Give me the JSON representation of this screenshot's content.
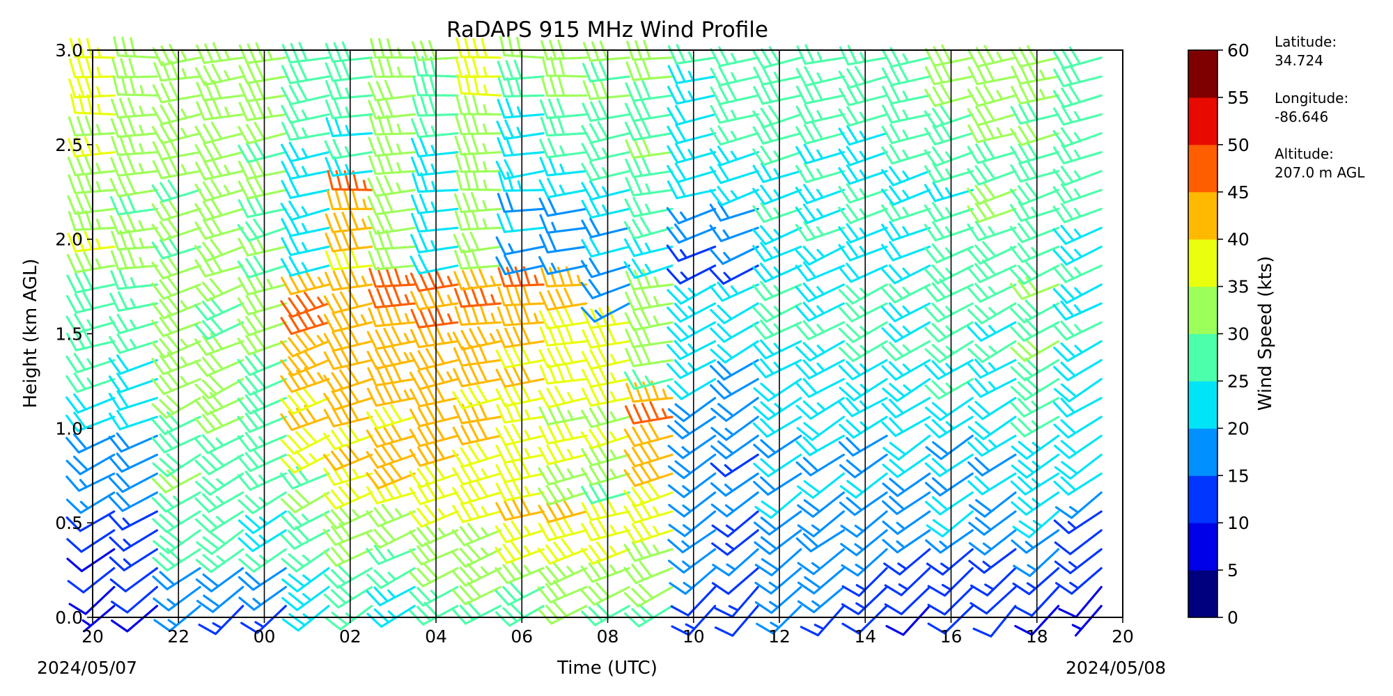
{
  "chart_data": {
    "type": "wind_barb_time_height",
    "title": "RaDAPS 915 MHz Wind Profile",
    "xlabel": "Time (UTC)",
    "ylabel": "Height (km AGL)",
    "x_tick_labels": [
      "20",
      "22",
      "00",
      "02",
      "04",
      "06",
      "08",
      "10",
      "12",
      "14",
      "16",
      "18",
      "20"
    ],
    "x_start_date": "2024/05/07",
    "x_end_date": "2024/05/08",
    "xlim_hours": [
      0,
      24
    ],
    "ylim": [
      0.0,
      3.0
    ],
    "y_ticks": [
      "0.0",
      "0.5",
      "1.0",
      "1.5",
      "2.0",
      "2.5",
      "3.0"
    ],
    "grid": "vertical lines every 2 hours",
    "colorbar": {
      "label": "Wind Speed (kts)",
      "ticks": [
        "0",
        "5",
        "10",
        "15",
        "20",
        "25",
        "30",
        "35",
        "40",
        "45",
        "50",
        "55",
        "60"
      ],
      "range": [
        0,
        60
      ],
      "colors": [
        "#00007f",
        "#0000e8",
        "#0036ff",
        "#0090ff",
        "#00e4f7",
        "#4cffaa",
        "#9dff59",
        "#e9ff0d",
        "#ffb900",
        "#ff5e00",
        "#e80a00",
        "#7f0000"
      ]
    },
    "station": {
      "latitude_label": "Latitude:",
      "latitude": "34.724",
      "longitude_label": "Longitude:",
      "longitude": "-86.646",
      "altitude_label": "Altitude:",
      "altitude": "207.0 m AGL"
    },
    "profiles": [
      {
        "t": 0.5,
        "layers": [
          {
            "top": 0.6,
            "spd": [
              8,
              12
            ],
            "dir": [
              225,
              240
            ]
          },
          {
            "top": 1.3,
            "spd": [
              14,
              24
            ],
            "dir": [
              240,
              250
            ]
          },
          {
            "top": 1.85,
            "spd": [
              24,
              31
            ],
            "dir": [
              250,
              262
            ]
          },
          {
            "top": 3.0,
            "spd": [
              33,
              37
            ],
            "dir": [
              262,
              272
            ]
          }
        ]
      },
      {
        "t": 1.5,
        "layers": [
          {
            "top": 0.6,
            "spd": [
              9,
              13
            ],
            "dir": [
              228,
              242
            ]
          },
          {
            "top": 1.3,
            "spd": [
              15,
              24
            ],
            "dir": [
              242,
              252
            ]
          },
          {
            "top": 1.85,
            "spd": [
              22,
              28
            ],
            "dir": [
              252,
              262
            ]
          },
          {
            "top": 3.0,
            "spd": [
              31,
              34
            ],
            "dir": [
              262,
              270
            ]
          }
        ]
      },
      {
        "t": 2.5,
        "layers": [
          {
            "top": 0.3,
            "spd": [
              14,
              20
            ],
            "dir": [
              225,
              235
            ]
          },
          {
            "top": 1.8,
            "spd": [
              28,
              33
            ],
            "dir": [
              235,
              250
            ]
          },
          {
            "top": 3.0,
            "spd": [
              30,
              33
            ],
            "dir": [
              250,
              262
            ]
          }
        ]
      },
      {
        "t": 3.5,
        "layers": [
          {
            "top": 0.3,
            "spd": [
              14,
              20
            ],
            "dir": [
              225,
              235
            ]
          },
          {
            "top": 1.8,
            "spd": [
              26,
              32
            ],
            "dir": [
              235,
              250
            ]
          },
          {
            "top": 3.0,
            "spd": [
              31,
              34
            ],
            "dir": [
              250,
              262
            ]
          }
        ]
      },
      {
        "t": 4.5,
        "layers": [
          {
            "top": 0.3,
            "spd": [
              14,
              20
            ],
            "dir": [
              228,
              238
            ]
          },
          {
            "top": 1.8,
            "spd": [
              24,
              32
            ],
            "dir": [
              238,
              252
            ]
          },
          {
            "top": 3.0,
            "spd": [
              28,
              32
            ],
            "dir": [
              252,
              262
            ]
          }
        ]
      },
      {
        "t": 5.5,
        "layers": [
          {
            "top": 0.8,
            "spd": [
              22,
              30
            ],
            "dir": [
              232,
              245
            ]
          },
          {
            "top": 1.85,
            "spd": [
              38,
              46
            ],
            "dir": [
              245,
              255
            ]
          },
          {
            "top": 3.0,
            "spd": [
              22,
              28
            ],
            "dir": [
              255,
              262
            ]
          }
        ]
      },
      {
        "t": 6.5,
        "layers": [
          {
            "top": 0.6,
            "spd": [
              24,
              32
            ],
            "dir": [
              235,
              248
            ]
          },
          {
            "top": 1.85,
            "spd": [
              37,
              45
            ],
            "dir": [
              248,
              262
            ]
          },
          {
            "top": 2.3,
            "spd": [
              40,
              45
            ],
            "dir": [
              262,
              268
            ]
          },
          {
            "top": 3.0,
            "spd": [
              22,
              30
            ],
            "dir": [
              262,
              268
            ]
          }
        ]
      },
      {
        "t": 7.5,
        "layers": [
          {
            "top": 0.6,
            "spd": [
              24,
              32
            ],
            "dir": [
              238,
              250
            ]
          },
          {
            "top": 1.85,
            "spd": [
              38,
              47
            ],
            "dir": [
              250,
              265
            ]
          },
          {
            "top": 3.0,
            "spd": [
              30,
              34
            ],
            "dir": [
              262,
              268
            ]
          }
        ]
      },
      {
        "t": 8.5,
        "layers": [
          {
            "top": 0.6,
            "spd": [
              26,
              36
            ],
            "dir": [
              238,
              250
            ]
          },
          {
            "top": 1.85,
            "spd": [
              38,
              46
            ],
            "dir": [
              250,
              265
            ]
          },
          {
            "top": 3.0,
            "spd": [
              22,
              30
            ],
            "dir": [
              262,
              270
            ]
          }
        ]
      },
      {
        "t": 9.5,
        "layers": [
          {
            "top": 0.6,
            "spd": [
              28,
              36
            ],
            "dir": [
              240,
              252
            ]
          },
          {
            "top": 1.85,
            "spd": [
              37,
              45
            ],
            "dir": [
              252,
              266
            ]
          },
          {
            "top": 3.0,
            "spd": [
              30,
              38
            ],
            "dir": [
              265,
              272
            ]
          }
        ]
      },
      {
        "t": 10.5,
        "layers": [
          {
            "top": 0.6,
            "spd": [
              28,
              40
            ],
            "dir": [
              240,
              255
            ]
          },
          {
            "top": 1.8,
            "spd": [
              35,
              44
            ],
            "dir": [
              255,
              266
            ]
          },
          {
            "top": 2.3,
            "spd": [
              15,
              22
            ],
            "dir": [
              260,
              268
            ]
          },
          {
            "top": 3.0,
            "spd": [
              20,
              30
            ],
            "dir": [
              262,
              270
            ]
          }
        ]
      },
      {
        "t": 11.5,
        "layers": [
          {
            "top": 0.6,
            "spd": [
              30,
              42
            ],
            "dir": [
              240,
              255
            ]
          },
          {
            "top": 1.8,
            "spd": [
              33,
              42
            ],
            "dir": [
              255,
              266
            ]
          },
          {
            "top": 2.2,
            "spd": [
              15,
              20
            ],
            "dir": [
              255,
              265
            ]
          },
          {
            "top": 3.0,
            "spd": [
              25,
              32
            ],
            "dir": [
              262,
              270
            ]
          }
        ]
      },
      {
        "t": 12.5,
        "layers": [
          {
            "top": 0.6,
            "spd": [
              28,
              38
            ],
            "dir": [
              240,
              255
            ]
          },
          {
            "top": 1.6,
            "spd": [
              30,
              40
            ],
            "dir": [
              250,
              262
            ]
          },
          {
            "top": 2.1,
            "spd": [
              15,
              20
            ],
            "dir": [
              245,
              255
            ]
          },
          {
            "top": 3.0,
            "spd": [
              25,
              32
            ],
            "dir": [
              255,
              265
            ]
          }
        ]
      },
      {
        "t": 13.5,
        "layers": [
          {
            "top": 0.6,
            "spd": [
              28,
              38
            ],
            "dir": [
              240,
              255
            ]
          },
          {
            "top": 1.2,
            "spd": [
              38,
              47
            ],
            "dir": [
              250,
              262
            ]
          },
          {
            "top": 1.8,
            "spd": [
              28,
              36
            ],
            "dir": [
              258,
              265
            ]
          },
          {
            "top": 3.0,
            "spd": [
              25,
              32
            ],
            "dir": [
              255,
              265
            ]
          }
        ]
      },
      {
        "t": 14.5,
        "layers": [
          {
            "top": 0.5,
            "spd": [
              12,
              18
            ],
            "dir": [
              220,
              235
            ]
          },
          {
            "top": 1.8,
            "spd": [
              16,
              24
            ],
            "dir": [
              230,
              245
            ]
          },
          {
            "top": 2.3,
            "spd": [
              14,
              20
            ],
            "dir": [
              245,
              255
            ]
          },
          {
            "top": 3.0,
            "spd": [
              20,
              26
            ],
            "dir": [
              250,
              262
            ]
          }
        ]
      },
      {
        "t": 15.5,
        "layers": [
          {
            "top": 0.5,
            "spd": [
              10,
              16
            ],
            "dir": [
              220,
              235
            ]
          },
          {
            "top": 1.8,
            "spd": [
              14,
              22
            ],
            "dir": [
              230,
              245
            ]
          },
          {
            "top": 2.2,
            "spd": [
              14,
              18
            ],
            "dir": [
              240,
              250
            ]
          },
          {
            "top": 3.0,
            "spd": [
              22,
              28
            ],
            "dir": [
              250,
              262
            ]
          }
        ]
      },
      {
        "t": 16.5,
        "layers": [
          {
            "top": 0.5,
            "spd": [
              14,
              20
            ],
            "dir": [
              222,
              235
            ]
          },
          {
            "top": 1.8,
            "spd": [
              18,
              26
            ],
            "dir": [
              232,
              245
            ]
          },
          {
            "top": 3.0,
            "spd": [
              22,
              30
            ],
            "dir": [
              245,
              258
            ]
          }
        ]
      },
      {
        "t": 17.5,
        "layers": [
          {
            "top": 0.5,
            "spd": [
              14,
              20
            ],
            "dir": [
              222,
              235
            ]
          },
          {
            "top": 1.8,
            "spd": [
              18,
              26
            ],
            "dir": [
              232,
              245
            ]
          },
          {
            "top": 3.0,
            "spd": [
              22,
              28
            ],
            "dir": [
              245,
              258
            ]
          }
        ]
      },
      {
        "t": 18.5,
        "layers": [
          {
            "top": 0.5,
            "spd": [
              12,
              18
            ],
            "dir": [
              222,
              235
            ]
          },
          {
            "top": 1.8,
            "spd": [
              18,
              26
            ],
            "dir": [
              232,
              245
            ]
          },
          {
            "top": 3.0,
            "spd": [
              22,
              28
            ],
            "dir": [
              245,
              258
            ]
          }
        ]
      },
      {
        "t": 19.5,
        "layers": [
          {
            "top": 0.5,
            "spd": [
              10,
              16
            ],
            "dir": [
              220,
              235
            ]
          },
          {
            "top": 1.8,
            "spd": [
              18,
              26
            ],
            "dir": [
              232,
              245
            ]
          },
          {
            "top": 3.0,
            "spd": [
              22,
              28
            ],
            "dir": [
              245,
              258
            ]
          }
        ]
      },
      {
        "t": 20.5,
        "layers": [
          {
            "top": 0.5,
            "spd": [
              10,
              16
            ],
            "dir": [
              220,
              235
            ]
          },
          {
            "top": 1.8,
            "spd": [
              18,
              28
            ],
            "dir": [
              232,
              245
            ]
          },
          {
            "top": 3.0,
            "spd": [
              24,
              30
            ],
            "dir": [
              245,
              258
            ]
          }
        ]
      },
      {
        "t": 21.5,
        "layers": [
          {
            "top": 0.5,
            "spd": [
              10,
              16
            ],
            "dir": [
              220,
              235
            ]
          },
          {
            "top": 1.8,
            "spd": [
              18,
              28
            ],
            "dir": [
              232,
              245
            ]
          },
          {
            "top": 3.0,
            "spd": [
              28,
              34
            ],
            "dir": [
              245,
              258
            ]
          }
        ]
      },
      {
        "t": 22.5,
        "layers": [
          {
            "top": 0.5,
            "spd": [
              10,
              16
            ],
            "dir": [
              220,
              235
            ]
          },
          {
            "top": 1.8,
            "spd": [
              22,
              32
            ],
            "dir": [
              232,
              245
            ]
          },
          {
            "top": 3.0,
            "spd": [
              26,
              32
            ],
            "dir": [
              245,
              258
            ]
          }
        ]
      },
      {
        "t": 23.5,
        "layers": [
          {
            "top": 0.6,
            "spd": [
              8,
              14
            ],
            "dir": [
              220,
              235
            ]
          },
          {
            "top": 1.8,
            "spd": [
              18,
              26
            ],
            "dir": [
              232,
              245
            ]
          },
          {
            "top": 3.0,
            "spd": [
              24,
              30
            ],
            "dir": [
              245,
              258
            ]
          }
        ]
      }
    ]
  }
}
